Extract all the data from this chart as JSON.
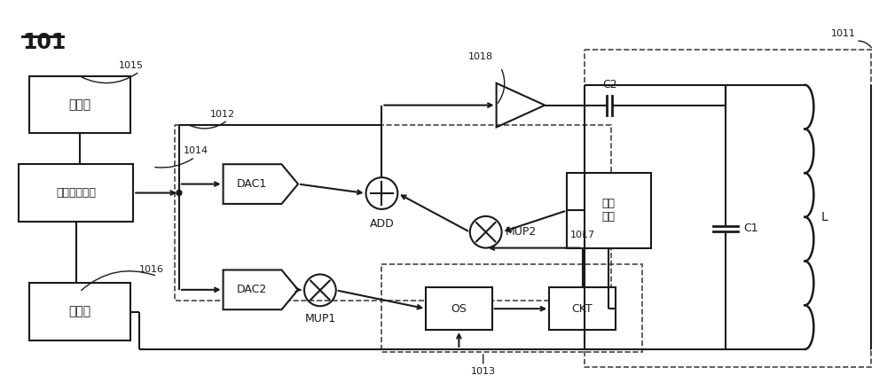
{
  "bg_color": "#ffffff",
  "line_color": "#1a1a1a",
  "dashed_color": "#444444",
  "label_101": "101",
  "label_1011": "1011",
  "label_1012": "1012",
  "label_1013": "1013",
  "label_1014": "1014",
  "label_1015": "1015",
  "label_1016": "1016",
  "label_1017": "1017",
  "label_1018": "1018",
  "label_memory": "存储器",
  "label_signal": "信号生成电路",
  "label_ctrl": "控制器",
  "label_demod_1": "解调",
  "label_demod_2": "电路",
  "label_dac1": "DAC1",
  "label_dac2": "DAC2",
  "label_add": "ADD",
  "label_mup1": "MUP1",
  "label_mup2": "MUP2",
  "label_os": "OS",
  "label_ckt": "CKT",
  "label_c1": "C1",
  "label_c2": "C2",
  "label_l": "L"
}
